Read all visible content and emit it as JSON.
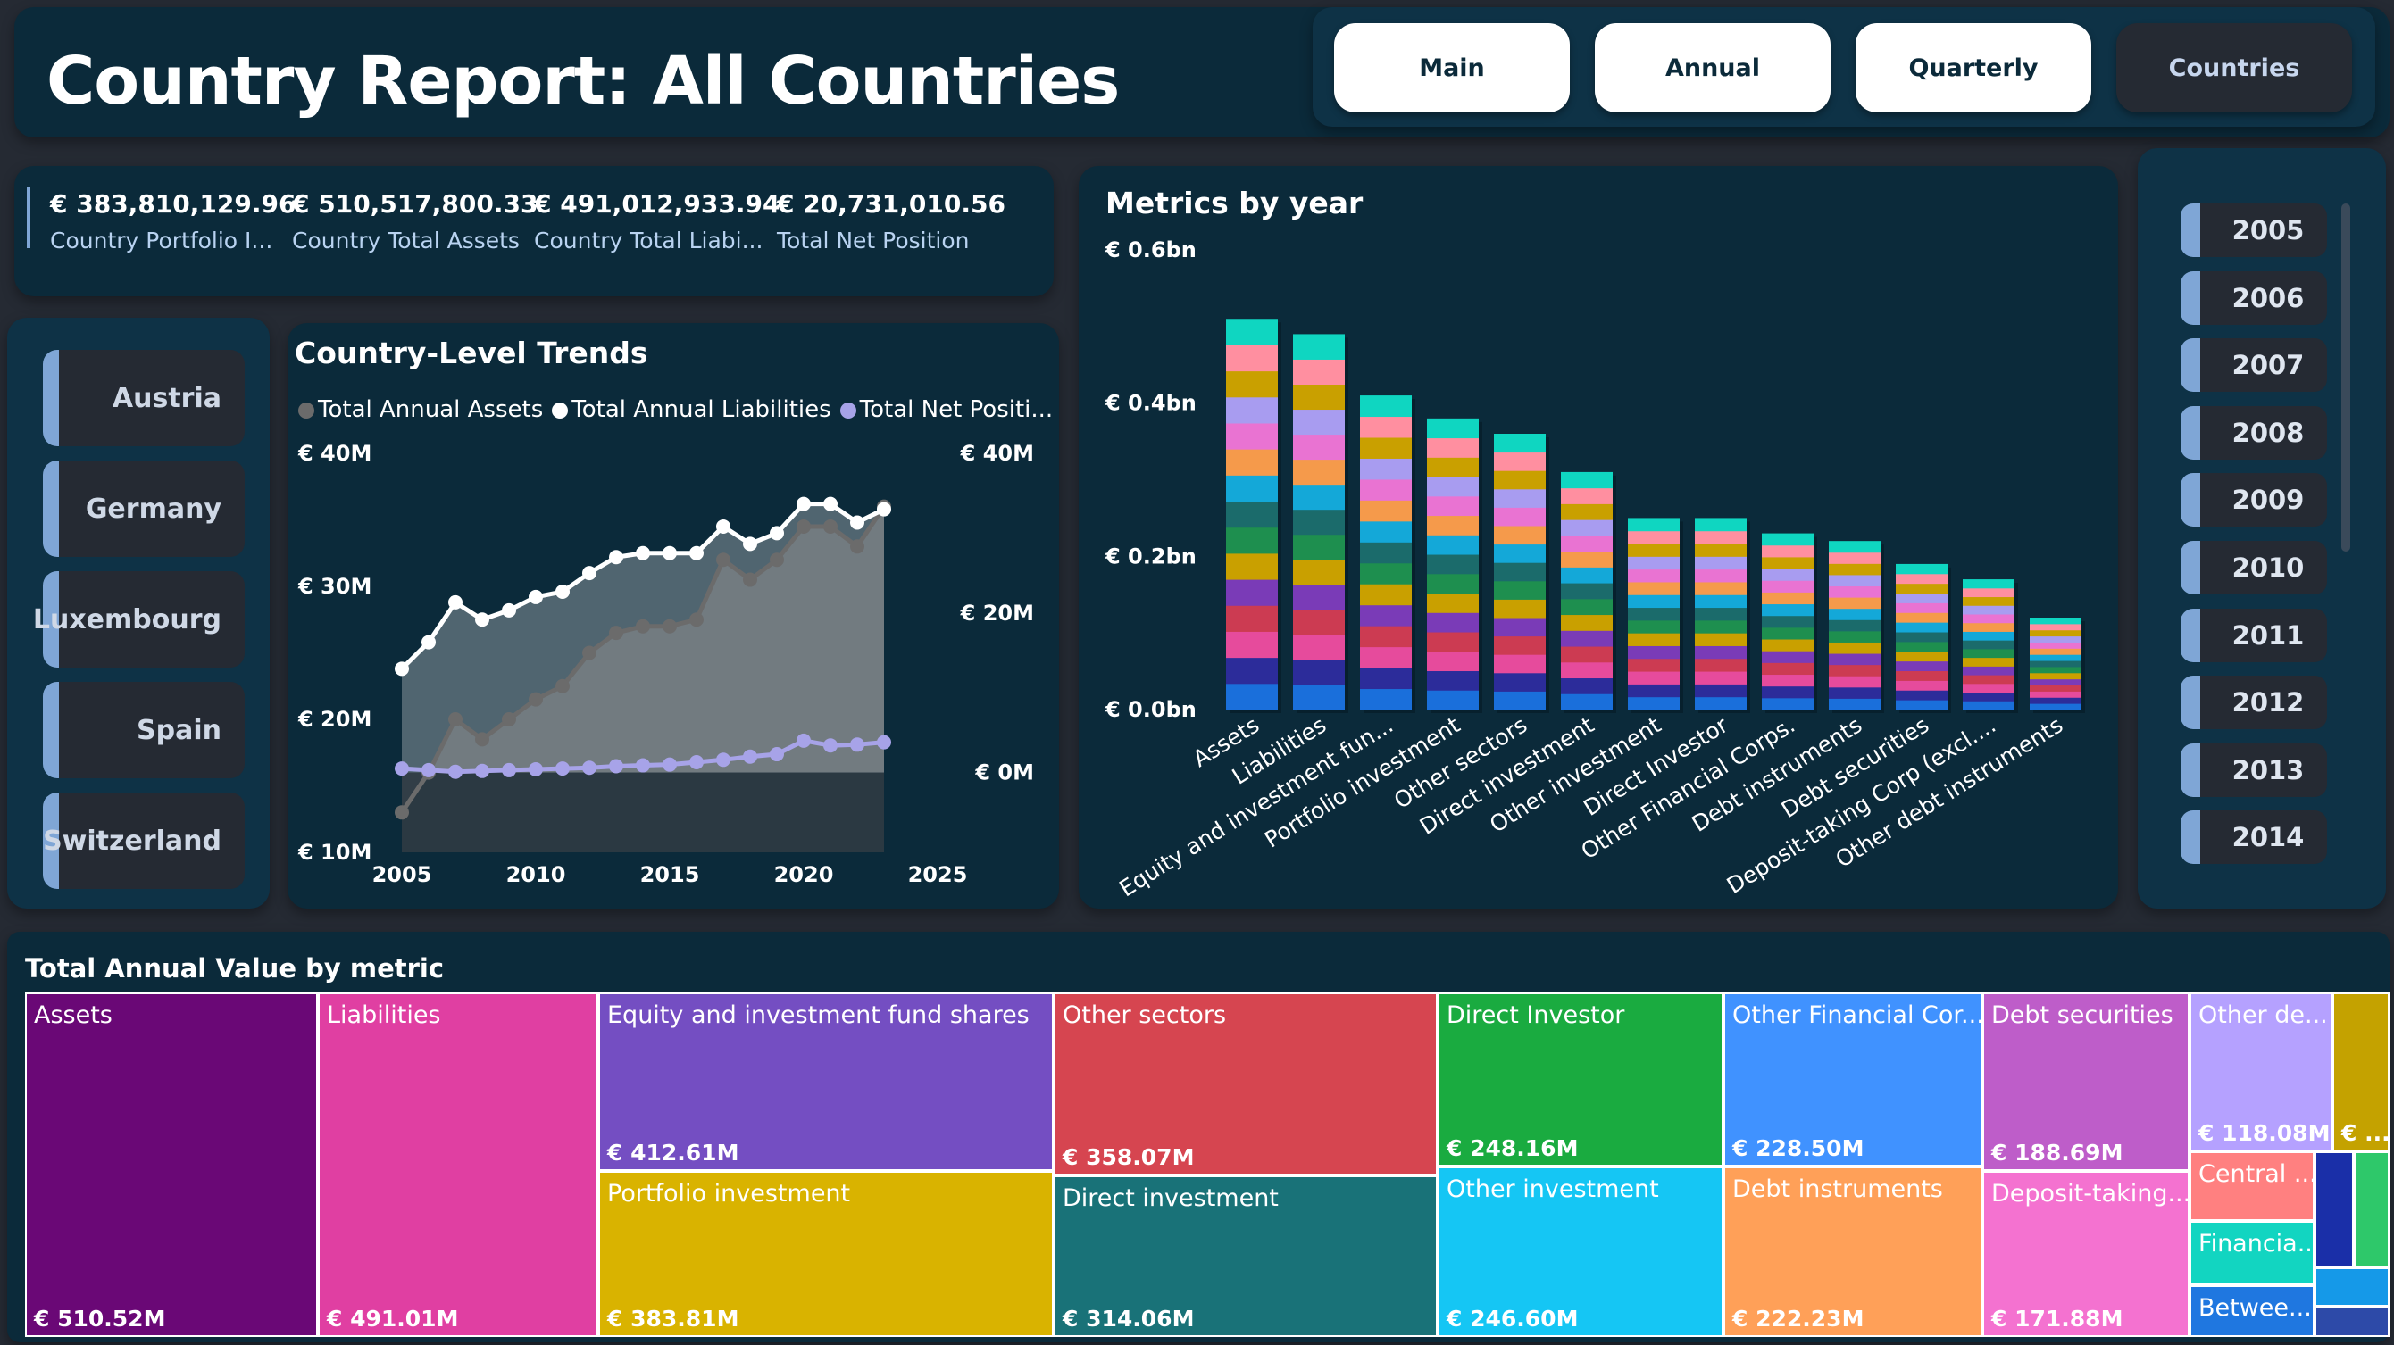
{
  "header": {
    "title": "Country Report: All Countries",
    "nav": [
      {
        "label": "Main",
        "active": false
      },
      {
        "label": "Annual",
        "active": false
      },
      {
        "label": "Quarterly",
        "active": false
      },
      {
        "label": "Countries",
        "active": true
      }
    ]
  },
  "kpis": [
    {
      "value": "€ 383,810,129.96",
      "label": "Country Portfolio I..."
    },
    {
      "value": "€ 510,517,800.33",
      "label": "Country Total Assets"
    },
    {
      "value": "€ 491,012,933.94",
      "label": "Country Total Liabi..."
    },
    {
      "value": "€ 20,731,010.56",
      "label": "Total Net Position"
    }
  ],
  "countries": [
    "Austria",
    "Germany",
    "Luxembourg",
    "Spain",
    "Switzerland"
  ],
  "years": [
    "2005",
    "2006",
    "2007",
    "2008",
    "2009",
    "2010",
    "2011",
    "2012",
    "2013",
    "2014"
  ],
  "colors": {
    "panel": "#0b2a3a",
    "background": "#252a33",
    "accent": "#7fa6d6",
    "assets_line": "#6b6b6b",
    "liabilities_line": "#ffffff",
    "net_line": "#a7a3e8"
  },
  "chart_data": [
    {
      "type": "area",
      "title": "Country-Level Trends",
      "legend": [
        "Total Annual Assets",
        "Total Annual Liabilities",
        "Total Net Positi..."
      ],
      "x": [
        2005,
        2006,
        2007,
        2008,
        2009,
        2010,
        2011,
        2012,
        2013,
        2014,
        2015,
        2016,
        2017,
        2018,
        2019,
        2020,
        2021,
        2022,
        2023
      ],
      "x_ticks": [
        "2005",
        "2010",
        "2015",
        "2020",
        "2025"
      ],
      "y_left_ticks": [
        "€ 40M",
        "€ 30M",
        "€ 20M",
        "€ 10M"
      ],
      "y_right_ticks": [
        "€ 40M",
        "€ 20M",
        "€ 0M"
      ],
      "ylim_left": [
        10,
        40
      ],
      "ylim_right": [
        -10,
        40
      ],
      "series": [
        {
          "name": "Total Annual Assets",
          "axis": "left",
          "values": [
            13,
            16,
            20,
            18.5,
            20,
            21.5,
            22.5,
            25,
            26.5,
            27,
            27,
            27.5,
            32,
            30.5,
            32,
            34.5,
            34.5,
            33,
            36
          ]
        },
        {
          "name": "Total Annual Liabilities",
          "axis": "left",
          "values": [
            23.8,
            25.8,
            28.8,
            27.5,
            28.2,
            29.2,
            29.6,
            31,
            32.2,
            32.5,
            32.5,
            32.5,
            34.5,
            33.2,
            34,
            36.2,
            36.2,
            34.8,
            35.8
          ]
        },
        {
          "name": "Total Net Positi...",
          "axis": "right",
          "values": [
            0.5,
            0.3,
            0.1,
            0.2,
            0.3,
            0.4,
            0.5,
            0.6,
            0.8,
            0.9,
            1.0,
            1.3,
            1.6,
            2.0,
            2.3,
            4.0,
            3.4,
            3.5,
            3.8
          ]
        }
      ]
    },
    {
      "type": "bar",
      "title": "Metrics by year",
      "stacked": true,
      "y_ticks": [
        "€ 0.6bn",
        "€ 0.4bn",
        "€ 0.2bn",
        "€ 0.0bn"
      ],
      "ylim": [
        0,
        0.6
      ],
      "categories": [
        "Assets",
        "Liabilities",
        "Equity and investment fun...",
        "Portfolio investment",
        "Other sectors",
        "Direct investment",
        "Other investment",
        "Direct Investor",
        "Other Financial Corps.",
        "Debt instruments",
        "Debt securities",
        "Deposit-taking Corp (excl....",
        "Other debt instruments"
      ],
      "values": [
        0.51,
        0.49,
        0.41,
        0.38,
        0.36,
        0.31,
        0.25,
        0.25,
        0.23,
        0.22,
        0.19,
        0.17,
        0.12
      ],
      "segment_colors": [
        "#1a6fdb",
        "#2c2c9a",
        "#e64b9c",
        "#cc3b52",
        "#7a3bb7",
        "#c9a000",
        "#1e8f4f",
        "#1b6b6b",
        "#14a8d8",
        "#f59a4b",
        "#e973d2",
        "#a89cf0",
        "#c9a000",
        "#ff8fa0",
        "#0fd6c1"
      ]
    },
    {
      "type": "treemap",
      "title": "Total Annual Value by metric",
      "items": [
        {
          "name": "Assets",
          "value": "€ 510.52M",
          "color": "#6a0876"
        },
        {
          "name": "Liabilities",
          "value": "€ 491.01M",
          "color": "#e03fa2"
        },
        {
          "name": "Equity and investment fund shares",
          "value": "€ 412.61M",
          "color": "#744ec2"
        },
        {
          "name": "Portfolio investment",
          "value": "€ 383.81M",
          "color": "#d9b300"
        },
        {
          "name": "Other sectors",
          "value": "€ 358.07M",
          "color": "#d64550"
        },
        {
          "name": "Direct investment",
          "value": "€ 314.06M",
          "color": "#197278"
        },
        {
          "name": "Direct Investor",
          "value": "€ 248.16M",
          "color": "#1aab40"
        },
        {
          "name": "Other investment",
          "value": "€ 246.60M",
          "color": "#15c6f4"
        },
        {
          "name": "Other Financial Cor...",
          "value": "€ 228.50M",
          "color": "#4092ff"
        },
        {
          "name": "Debt instruments",
          "value": "€ 222.23M",
          "color": "#ffa058"
        },
        {
          "name": "Debt securities",
          "value": "€ 188.69M",
          "color": "#be5dc9"
        },
        {
          "name": "Deposit-taking...",
          "value": "€ 171.88M",
          "color": "#f472d0"
        },
        {
          "name": "Other de...",
          "value": "€ 118.08M",
          "color": "#b5a1ff"
        },
        {
          "name": "",
          "value": "€ ...",
          "color": "#c4a200"
        },
        {
          "name": "Central ...",
          "value": "",
          "color": "#ff8080"
        },
        {
          "name": "Financia...",
          "value": "",
          "color": "#12d5c1"
        },
        {
          "name": "Betwee...",
          "value": "",
          "color": "#1f77e0"
        },
        {
          "name": "",
          "value": "",
          "color": "#1a2fa8"
        },
        {
          "name": "",
          "value": "",
          "color": "#2ec86a"
        },
        {
          "name": "",
          "value": "",
          "color": "#1599e8"
        },
        {
          "name": "",
          "value": "",
          "color": "#2d4aa8"
        }
      ]
    }
  ]
}
